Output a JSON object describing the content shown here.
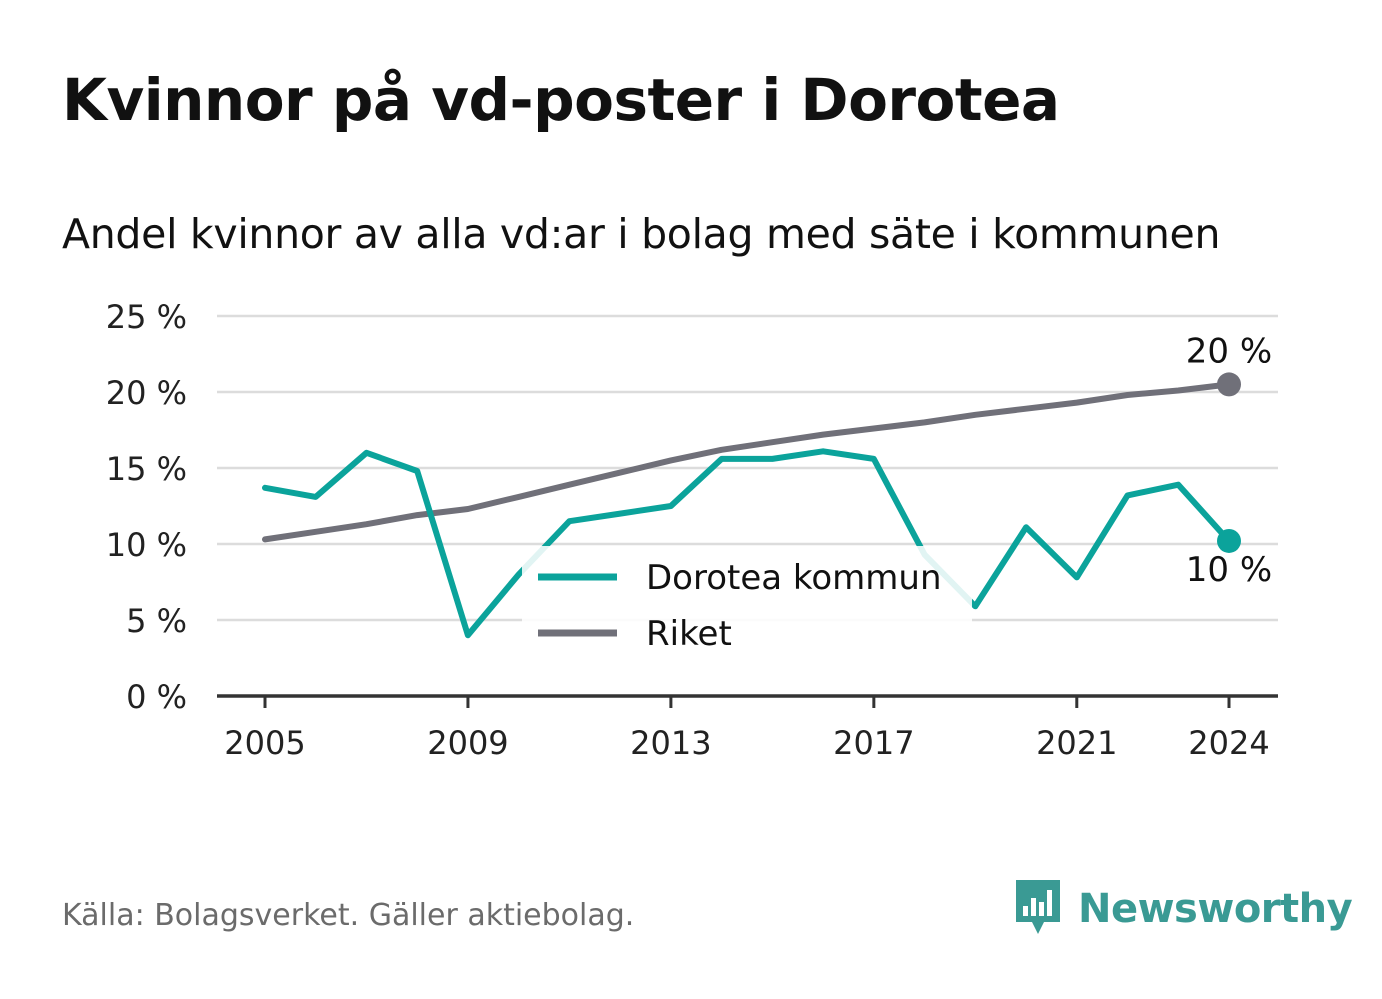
{
  "title": "Kvinnor på vd-poster i Dorotea",
  "subtitle": "Andel kvinnor av alla vd:ar i bolag med säte i kommunen",
  "source": "Källa: Bolagsverket. Gäller aktiebolag.",
  "brand": {
    "name": "Newsworthy",
    "color": "#3a9a94",
    "icon": "newsworthy-logo-icon"
  },
  "colors": {
    "dorotea": "#0ba39b",
    "riket": "#707079",
    "grid": "#dcdcdc",
    "axis": "#333333"
  },
  "chart_data": {
    "type": "line",
    "x": [
      2005,
      2006,
      2007,
      2008,
      2009,
      2010,
      2011,
      2012,
      2013,
      2014,
      2015,
      2016,
      2017,
      2018,
      2019,
      2020,
      2021,
      2022,
      2023,
      2024
    ],
    "x_ticks": [
      "2005",
      "2009",
      "2013",
      "2017",
      "2021",
      "2024"
    ],
    "y_ticks": [
      "0 %",
      "5 %",
      "10 %",
      "15 %",
      "20 %",
      "25 %"
    ],
    "ylim": [
      0,
      25
    ],
    "grid": true,
    "legend_position": "center",
    "series": [
      {
        "name": "Dorotea kommun",
        "color": "#0ba39b",
        "values": [
          13.7,
          13.1,
          16.0,
          14.8,
          4.0,
          8.0,
          11.5,
          12.0,
          12.5,
          15.6,
          15.6,
          16.1,
          15.6,
          9.3,
          5.9,
          11.1,
          7.8,
          13.2,
          13.9,
          10.2
        ],
        "end_label": "10 %"
      },
      {
        "name": "Riket",
        "color": "#707079",
        "values": [
          10.3,
          10.8,
          11.3,
          11.9,
          12.3,
          13.1,
          13.9,
          14.7,
          15.5,
          16.2,
          16.7,
          17.2,
          17.6,
          18.0,
          18.5,
          18.9,
          19.3,
          19.8,
          20.1,
          20.5
        ],
        "end_label": "20 %"
      }
    ]
  }
}
